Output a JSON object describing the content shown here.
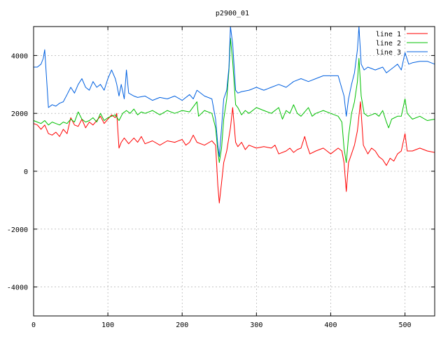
{
  "chart_data": {
    "type": "line",
    "title": "p2900_01",
    "xlabel": "",
    "ylabel": "",
    "xlim": [
      0,
      540
    ],
    "ylim": [
      -5000,
      5000
    ],
    "x_ticks": [
      0,
      100,
      200,
      300,
      400,
      500
    ],
    "y_ticks": [
      -4000,
      -2000,
      0,
      2000,
      4000
    ],
    "grid": true,
    "legend_position": "top-right",
    "series": [
      {
        "name": "line 1",
        "color": "#ff0000",
        "points": [
          [
            0,
            1650
          ],
          [
            5,
            1600
          ],
          [
            10,
            1450
          ],
          [
            15,
            1600
          ],
          [
            20,
            1300
          ],
          [
            25,
            1250
          ],
          [
            30,
            1350
          ],
          [
            35,
            1200
          ],
          [
            40,
            1450
          ],
          [
            45,
            1300
          ],
          [
            50,
            1850
          ],
          [
            55,
            1600
          ],
          [
            60,
            1550
          ],
          [
            65,
            1800
          ],
          [
            70,
            1500
          ],
          [
            75,
            1700
          ],
          [
            80,
            1600
          ],
          [
            85,
            1750
          ],
          [
            90,
            1900
          ],
          [
            95,
            1650
          ],
          [
            100,
            1800
          ],
          [
            105,
            1950
          ],
          [
            110,
            1850
          ],
          [
            112,
            2000
          ],
          [
            115,
            800
          ],
          [
            118,
            1000
          ],
          [
            122,
            1150
          ],
          [
            128,
            950
          ],
          [
            135,
            1150
          ],
          [
            140,
            1000
          ],
          [
            145,
            1200
          ],
          [
            150,
            950
          ],
          [
            160,
            1050
          ],
          [
            170,
            900
          ],
          [
            180,
            1050
          ],
          [
            190,
            1000
          ],
          [
            200,
            1100
          ],
          [
            205,
            900
          ],
          [
            210,
            1000
          ],
          [
            215,
            1250
          ],
          [
            220,
            1000
          ],
          [
            230,
            900
          ],
          [
            240,
            1050
          ],
          [
            245,
            900
          ],
          [
            248,
            -500
          ],
          [
            250,
            -1100
          ],
          [
            253,
            -400
          ],
          [
            256,
            300
          ],
          [
            260,
            700
          ],
          [
            265,
            1500
          ],
          [
            268,
            2200
          ],
          [
            272,
            1000
          ],
          [
            275,
            850
          ],
          [
            280,
            1000
          ],
          [
            285,
            750
          ],
          [
            290,
            900
          ],
          [
            300,
            800
          ],
          [
            310,
            850
          ],
          [
            320,
            800
          ],
          [
            325,
            900
          ],
          [
            330,
            600
          ],
          [
            340,
            700
          ],
          [
            345,
            800
          ],
          [
            350,
            650
          ],
          [
            355,
            750
          ],
          [
            360,
            800
          ],
          [
            365,
            1200
          ],
          [
            368,
            900
          ],
          [
            372,
            600
          ],
          [
            380,
            700
          ],
          [
            390,
            800
          ],
          [
            395,
            700
          ],
          [
            400,
            600
          ],
          [
            410,
            800
          ],
          [
            415,
            700
          ],
          [
            418,
            300
          ],
          [
            421,
            -700
          ],
          [
            424,
            300
          ],
          [
            428,
            600
          ],
          [
            432,
            900
          ],
          [
            436,
            1400
          ],
          [
            440,
            2400
          ],
          [
            444,
            900
          ],
          [
            450,
            600
          ],
          [
            455,
            800
          ],
          [
            460,
            700
          ],
          [
            465,
            500
          ],
          [
            470,
            400
          ],
          [
            475,
            200
          ],
          [
            480,
            450
          ],
          [
            485,
            350
          ],
          [
            490,
            600
          ],
          [
            495,
            700
          ],
          [
            500,
            1300
          ],
          [
            503,
            700
          ],
          [
            510,
            700
          ],
          [
            520,
            800
          ],
          [
            530,
            700
          ],
          [
            540,
            650
          ]
        ]
      },
      {
        "name": "line 2",
        "color": "#00c000",
        "points": [
          [
            0,
            1750
          ],
          [
            5,
            1700
          ],
          [
            10,
            1650
          ],
          [
            15,
            1750
          ],
          [
            20,
            1600
          ],
          [
            25,
            1700
          ],
          [
            30,
            1650
          ],
          [
            35,
            1600
          ],
          [
            40,
            1700
          ],
          [
            45,
            1650
          ],
          [
            50,
            1800
          ],
          [
            55,
            1700
          ],
          [
            60,
            2050
          ],
          [
            65,
            1800
          ],
          [
            70,
            1700
          ],
          [
            75,
            1750
          ],
          [
            80,
            1850
          ],
          [
            85,
            1700
          ],
          [
            90,
            2000
          ],
          [
            95,
            1750
          ],
          [
            100,
            1850
          ],
          [
            105,
            1900
          ],
          [
            110,
            1950
          ],
          [
            115,
            1750
          ],
          [
            120,
            2000
          ],
          [
            125,
            2100
          ],
          [
            130,
            2000
          ],
          [
            135,
            2150
          ],
          [
            140,
            1950
          ],
          [
            145,
            2050
          ],
          [
            150,
            2000
          ],
          [
            160,
            2100
          ],
          [
            170,
            1950
          ],
          [
            180,
            2100
          ],
          [
            190,
            2000
          ],
          [
            200,
            2100
          ],
          [
            210,
            2050
          ],
          [
            220,
            2400
          ],
          [
            222,
            1900
          ],
          [
            230,
            2100
          ],
          [
            240,
            2000
          ],
          [
            245,
            1500
          ],
          [
            248,
            700
          ],
          [
            250,
            300
          ],
          [
            253,
            800
          ],
          [
            256,
            1800
          ],
          [
            260,
            2500
          ],
          [
            263,
            3500
          ],
          [
            265,
            4600
          ],
          [
            268,
            3800
          ],
          [
            272,
            2300
          ],
          [
            275,
            2200
          ],
          [
            280,
            1950
          ],
          [
            285,
            2100
          ],
          [
            290,
            2000
          ],
          [
            300,
            2200
          ],
          [
            310,
            2100
          ],
          [
            320,
            2000
          ],
          [
            330,
            2200
          ],
          [
            335,
            1800
          ],
          [
            340,
            2100
          ],
          [
            345,
            2000
          ],
          [
            350,
            2300
          ],
          [
            355,
            2000
          ],
          [
            360,
            1900
          ],
          [
            365,
            2050
          ],
          [
            370,
            2200
          ],
          [
            375,
            1900
          ],
          [
            380,
            2000
          ],
          [
            390,
            2100
          ],
          [
            400,
            2000
          ],
          [
            410,
            1900
          ],
          [
            415,
            1700
          ],
          [
            418,
            800
          ],
          [
            421,
            300
          ],
          [
            424,
            1200
          ],
          [
            428,
            2000
          ],
          [
            432,
            2400
          ],
          [
            436,
            3100
          ],
          [
            438,
            3900
          ],
          [
            441,
            2600
          ],
          [
            445,
            2000
          ],
          [
            450,
            1900
          ],
          [
            460,
            2000
          ],
          [
            465,
            1900
          ],
          [
            470,
            2100
          ],
          [
            475,
            1700
          ],
          [
            478,
            1500
          ],
          [
            482,
            1800
          ],
          [
            490,
            1900
          ],
          [
            495,
            1900
          ],
          [
            500,
            2500
          ],
          [
            503,
            2000
          ],
          [
            510,
            1800
          ],
          [
            520,
            1900
          ],
          [
            530,
            1750
          ],
          [
            540,
            1800
          ]
        ]
      },
      {
        "name": "line 3",
        "color": "#0060e0",
        "points": [
          [
            0,
            3600
          ],
          [
            5,
            3600
          ],
          [
            10,
            3700
          ],
          [
            13,
            3900
          ],
          [
            15,
            4200
          ],
          [
            17,
            3400
          ],
          [
            20,
            2200
          ],
          [
            25,
            2300
          ],
          [
            30,
            2250
          ],
          [
            35,
            2350
          ],
          [
            40,
            2400
          ],
          [
            45,
            2650
          ],
          [
            50,
            2900
          ],
          [
            55,
            2700
          ],
          [
            60,
            3000
          ],
          [
            65,
            3200
          ],
          [
            70,
            2900
          ],
          [
            75,
            2800
          ],
          [
            80,
            3100
          ],
          [
            85,
            2900
          ],
          [
            90,
            3000
          ],
          [
            95,
            2800
          ],
          [
            100,
            3200
          ],
          [
            105,
            3500
          ],
          [
            110,
            3200
          ],
          [
            112,
            3000
          ],
          [
            115,
            2600
          ],
          [
            118,
            3000
          ],
          [
            122,
            2500
          ],
          [
            125,
            3500
          ],
          [
            128,
            2700
          ],
          [
            135,
            2600
          ],
          [
            140,
            2550
          ],
          [
            150,
            2600
          ],
          [
            160,
            2450
          ],
          [
            170,
            2550
          ],
          [
            180,
            2500
          ],
          [
            190,
            2600
          ],
          [
            200,
            2450
          ],
          [
            210,
            2650
          ],
          [
            215,
            2500
          ],
          [
            220,
            2800
          ],
          [
            230,
            2600
          ],
          [
            240,
            2500
          ],
          [
            245,
            1800
          ],
          [
            248,
            900
          ],
          [
            250,
            500
          ],
          [
            253,
            1500
          ],
          [
            256,
            2500
          ],
          [
            260,
            2800
          ],
          [
            263,
            3600
          ],
          [
            265,
            5000
          ],
          [
            268,
            4400
          ],
          [
            272,
            2800
          ],
          [
            275,
            2700
          ],
          [
            280,
            2750
          ],
          [
            290,
            2800
          ],
          [
            300,
            2900
          ],
          [
            310,
            2800
          ],
          [
            320,
            2900
          ],
          [
            330,
            3000
          ],
          [
            340,
            2900
          ],
          [
            350,
            3100
          ],
          [
            360,
            3200
          ],
          [
            370,
            3100
          ],
          [
            380,
            3200
          ],
          [
            390,
            3300
          ],
          [
            400,
            3300
          ],
          [
            410,
            3300
          ],
          [
            418,
            2600
          ],
          [
            421,
            1900
          ],
          [
            424,
            2500
          ],
          [
            428,
            3000
          ],
          [
            432,
            3400
          ],
          [
            436,
            4200
          ],
          [
            438,
            5000
          ],
          [
            441,
            3700
          ],
          [
            445,
            3500
          ],
          [
            450,
            3600
          ],
          [
            460,
            3500
          ],
          [
            470,
            3600
          ],
          [
            475,
            3400
          ],
          [
            480,
            3500
          ],
          [
            485,
            3600
          ],
          [
            490,
            3700
          ],
          [
            495,
            3500
          ],
          [
            500,
            4100
          ],
          [
            505,
            3700
          ],
          [
            510,
            3750
          ],
          [
            520,
            3800
          ],
          [
            530,
            3800
          ],
          [
            540,
            3700
          ]
        ]
      }
    ]
  }
}
